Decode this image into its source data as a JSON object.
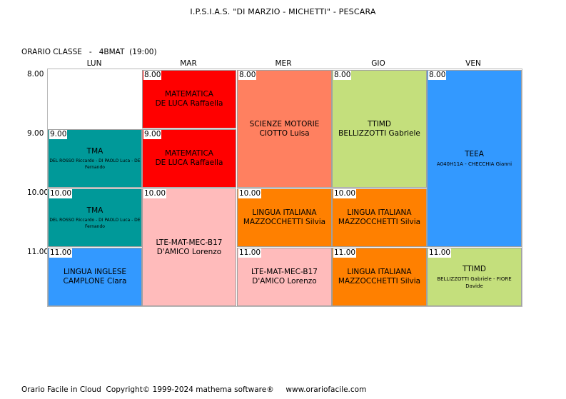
{
  "header": {
    "school": "I.P.S.I.A.S. \"DI MARZIO - MICHETTI\" - PESCARA",
    "class_line": "ORARIO CLASSE   -   4BMAT  (19:00)"
  },
  "days": [
    "LUN",
    "MAR",
    "MER",
    "GIO",
    "VEN"
  ],
  "hours": [
    "8.00",
    "9.00",
    "10.00",
    "11.00"
  ],
  "lessons": [
    {
      "start": "9.00",
      "subject": "TMA",
      "teacher": "DEL ROSSO Riccardo - DI PAOLO Luca - DE Fernando",
      "color": "#009999"
    },
    {
      "start": "10.00",
      "subject": "TMA",
      "teacher": "DEL ROSSO Riccardo - DI PAOLO Luca - DE Fernando",
      "color": "#009999"
    },
    {
      "start": "11.00",
      "subject": "LINGUA INGLESE",
      "teacher": "CAMPLONE Clara",
      "color": "#3399ff"
    },
    {
      "start": "8.00",
      "subject": "MATEMATICA",
      "teacher": "DE LUCA Raffaella",
      "color": "#ff0000"
    },
    {
      "start": "9.00",
      "subject": "MATEMATICA",
      "teacher": "DE LUCA Raffaella",
      "color": "#ff0000"
    },
    {
      "start": "10.00",
      "subject": "LTE-MAT-MEC-B17",
      "teacher": "D'AMICO Lorenzo",
      "color": "#ffbbbb"
    },
    {
      "start": "8.00",
      "subject": "SCIENZE MOTORIE",
      "teacher": "CIOTTO Luisa",
      "color": "#ff8060"
    },
    {
      "start": "10.00",
      "subject": "LINGUA ITALIANA",
      "teacher": "MAZZOCCHETTI Silvia",
      "color": "#ff8000"
    },
    {
      "start": "11.00",
      "subject": "LTE-MAT-MEC-B17",
      "teacher": "D'AMICO Lorenzo",
      "color": "#ffbbbb"
    },
    {
      "start": "8.00",
      "subject": "TTIMD",
      "teacher": "BELLIZZOTTI Gabriele",
      "color": "#c4df7c"
    },
    {
      "start": "10.00",
      "subject": "LINGUA ITALIANA",
      "teacher": "MAZZOCCHETTI Silvia",
      "color": "#ff8000"
    },
    {
      "start": "11.00",
      "subject": "LINGUA ITALIANA",
      "teacher": "MAZZOCCHETTI Silvia",
      "color": "#ff8000"
    },
    {
      "start": "8.00",
      "subject": "TEEA",
      "teacher": "A040H11A - CHECCHIA Gianni",
      "color": "#3399ff"
    },
    {
      "start": "11.00",
      "subject": "TTIMD",
      "teacher": "BELLIZZOTTI Gabriele - FIORE Davide",
      "color": "#c4df7c"
    }
  ],
  "footer": "Orario Facile in Cloud  Copyright© 1999-2024 mathema software®     www.orariofacile.com"
}
